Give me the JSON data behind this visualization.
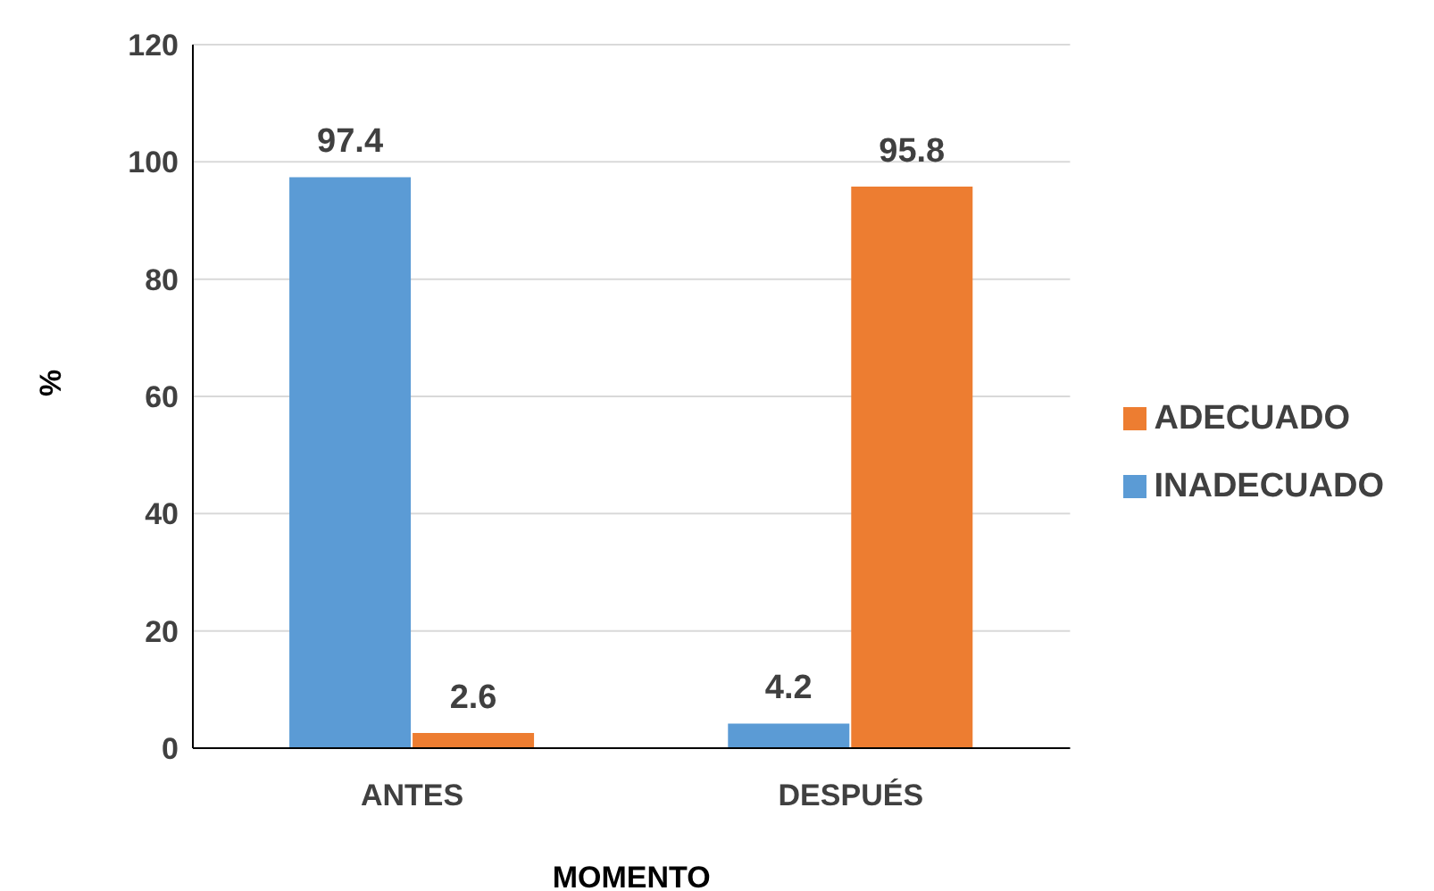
{
  "chart_data": {
    "type": "bar",
    "xlabel": "MOMENTO",
    "ylabel": "%",
    "categories": [
      "ANTES",
      "DESPUÉS"
    ],
    "series": [
      {
        "name": "INADECUADO",
        "color": "#5b9bd5",
        "values": [
          97.4,
          4.2
        ]
      },
      {
        "name": "ADECUADO",
        "color": "#ed7d31",
        "values": [
          2.6,
          95.8
        ]
      }
    ],
    "ylim": [
      0,
      120
    ],
    "yticks": [
      0,
      20,
      40,
      60,
      80,
      100,
      120
    ],
    "grid": "y",
    "legend": "right",
    "data_labels": true
  }
}
